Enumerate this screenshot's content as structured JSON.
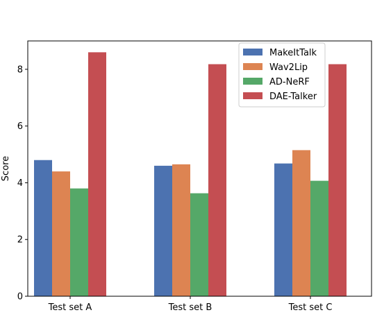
{
  "chart_data": {
    "type": "bar",
    "title": "",
    "xlabel": "",
    "ylabel": "Score",
    "ylim": [
      0,
      9
    ],
    "yticks": [
      0,
      2,
      4,
      6,
      8
    ],
    "categories": [
      "Test set A",
      "Test set B",
      "Test set C"
    ],
    "series": [
      {
        "name": "MakeItTalk",
        "color": "#4c72b0",
        "values": [
          4.8,
          4.6,
          4.68
        ]
      },
      {
        "name": "Wav2Lip",
        "color": "#dd8452",
        "values": [
          4.4,
          4.65,
          5.15
        ]
      },
      {
        "name": "AD-NeRF",
        "color": "#55a868",
        "values": [
          3.8,
          3.63,
          4.07
        ]
      },
      {
        "name": "DAE-Talker",
        "color": "#c44e52",
        "values": [
          8.6,
          8.18,
          8.18
        ]
      }
    ],
    "legend": "top-right",
    "grid": false
  }
}
